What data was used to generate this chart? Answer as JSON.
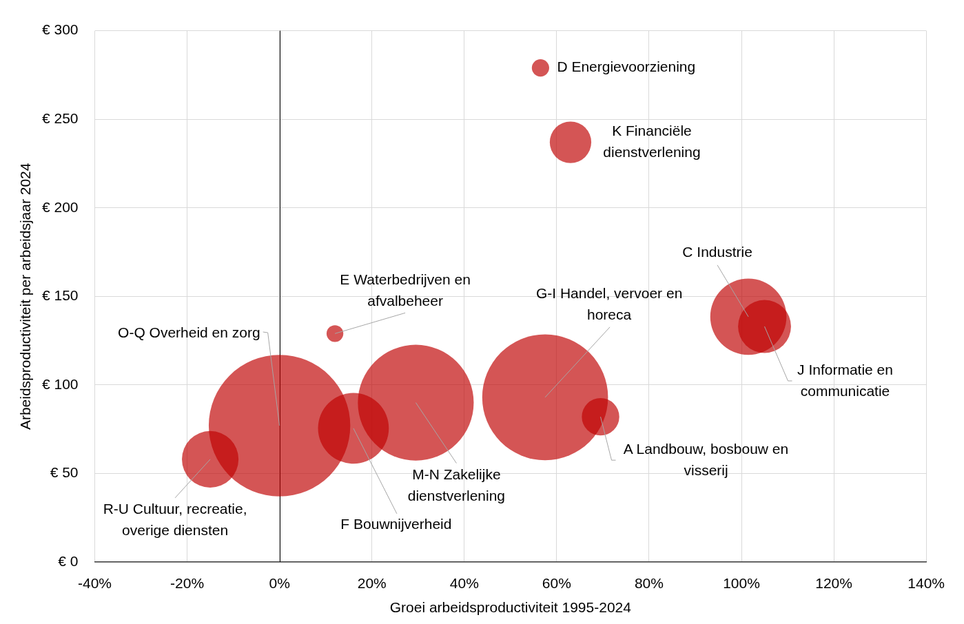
{
  "chart_data": {
    "type": "bubble",
    "xlabel": "Groei arbeidsproductiviteit 1995-2024",
    "ylabel": "Arbeidsproductiviteit per arbeidsjaar 2024",
    "xlim": [
      -40,
      140
    ],
    "xticks": [
      {
        "value": -40,
        "label": "-40%"
      },
      {
        "value": -20,
        "label": "-20%"
      },
      {
        "value": 0,
        "label": "0%"
      },
      {
        "value": 20,
        "label": "20%"
      },
      {
        "value": 40,
        "label": "40%"
      },
      {
        "value": 60,
        "label": "60%"
      },
      {
        "value": 80,
        "label": "80%"
      },
      {
        "value": 100,
        "label": "100%"
      },
      {
        "value": 120,
        "label": "120%"
      },
      {
        "value": 140,
        "label": "140%"
      }
    ],
    "ylim": [
      0,
      300
    ],
    "yticks": [
      {
        "value": 0,
        "label": "€ 0"
      },
      {
        "value": 50,
        "label": "€ 50"
      },
      {
        "value": 100,
        "label": "€ 100"
      },
      {
        "value": 150,
        "label": "€ 150"
      },
      {
        "value": 200,
        "label": "€ 200"
      },
      {
        "value": 250,
        "label": "€ 250"
      },
      {
        "value": 300,
        "label": "€ 300"
      }
    ],
    "grid": true,
    "ref_lines": [
      {
        "axis": "x",
        "value": 0,
        "color": "#000000"
      }
    ],
    "series": [
      {
        "name": "A Landbouw, bosbouw en visserij",
        "color": "#d45555",
        "x": [
          69.5
        ],
        "values": [
          82
        ],
        "sizes": [
          0.07
        ]
      },
      {
        "name": "C Industrie",
        "color": "#d45555",
        "x": [
          101.5
        ],
        "values": [
          138.5
        ],
        "sizes": [
          0.29
        ]
      },
      {
        "name": "D Energievoorziening",
        "color": "#d45555",
        "x": [
          56.5
        ],
        "values": [
          279
        ],
        "sizes": [
          0.015
        ]
      },
      {
        "name": "E Waterbedrijven en afvalbeheer",
        "color": "#d45555",
        "x": [
          12
        ],
        "values": [
          129
        ],
        "sizes": [
          0.014
        ]
      },
      {
        "name": "F Bouwnijverheid",
        "color": "#d45555",
        "x": [
          16
        ],
        "values": [
          75.5
        ],
        "sizes": [
          0.25
        ]
      },
      {
        "name": "G-I Handel, vervoer en horeca",
        "color": "#d45555",
        "x": [
          57.5
        ],
        "values": [
          93
        ],
        "sizes": [
          0.79
        ]
      },
      {
        "name": "J Informatie en communicatie",
        "color": "#d45555",
        "x": [
          105
        ],
        "values": [
          133
        ],
        "sizes": [
          0.14
        ]
      },
      {
        "name": "K Financiële dienstverlening",
        "color": "#d45555",
        "x": [
          63
        ],
        "values": [
          237
        ],
        "sizes": [
          0.086
        ]
      },
      {
        "name": "M-N Zakelijke dienstverlening",
        "color": "#d45555",
        "x": [
          29.5
        ],
        "values": [
          90
        ],
        "sizes": [
          0.67
        ]
      },
      {
        "name": "O-Q Overheid en zorg",
        "color": "#d45555",
        "x": [
          0
        ],
        "values": [
          77
        ],
        "sizes": [
          1
        ]
      },
      {
        "name": "R-U Cultuur, recreatie, overige diensten",
        "color": "#d45555",
        "x": [
          -15
        ],
        "values": [
          58
        ],
        "sizes": [
          0.16
        ]
      }
    ]
  }
}
